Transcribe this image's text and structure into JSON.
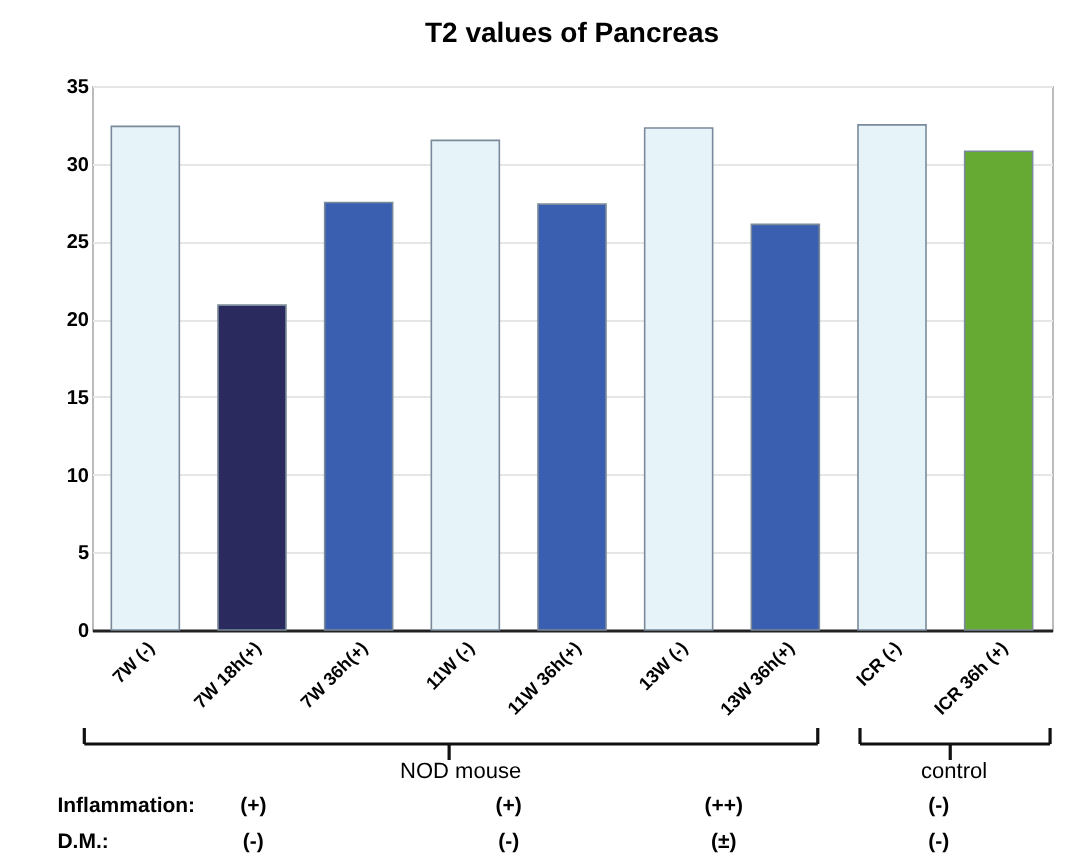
{
  "chart_data": {
    "type": "bar",
    "title": "T2 values of Pancreas",
    "categories": [
      "7W (-)",
      "7W 18h(+)",
      "7W 36h(+)",
      "11W (-)",
      "11W 36h(+)",
      "13W (-)",
      "13W 36h(+)",
      "ICR (-)",
      "ICR 36h (+)"
    ],
    "values": [
      32.4,
      20.9,
      27.5,
      31.5,
      27.4,
      32.3,
      26.1,
      32.5,
      30.8
    ],
    "colors": [
      "#e6f3f8",
      "#2b2a5e",
      "#3a5fb0",
      "#e6f3f8",
      "#3a5fb0",
      "#e6f3f8",
      "#3a5fb0",
      "#e6f3f8",
      "#66aa33"
    ],
    "ylim": [
      0,
      35
    ],
    "yticks": [
      0,
      5,
      10,
      15,
      20,
      25,
      30,
      35
    ],
    "grid": "y",
    "annotations": [
      "NOD mouse",
      "control",
      "Inflammation:",
      "(+)",
      "(+)",
      "(++)",
      "(-)",
      "D.M.:",
      "(-)",
      "(-)",
      "(±)",
      "(-)"
    ]
  }
}
